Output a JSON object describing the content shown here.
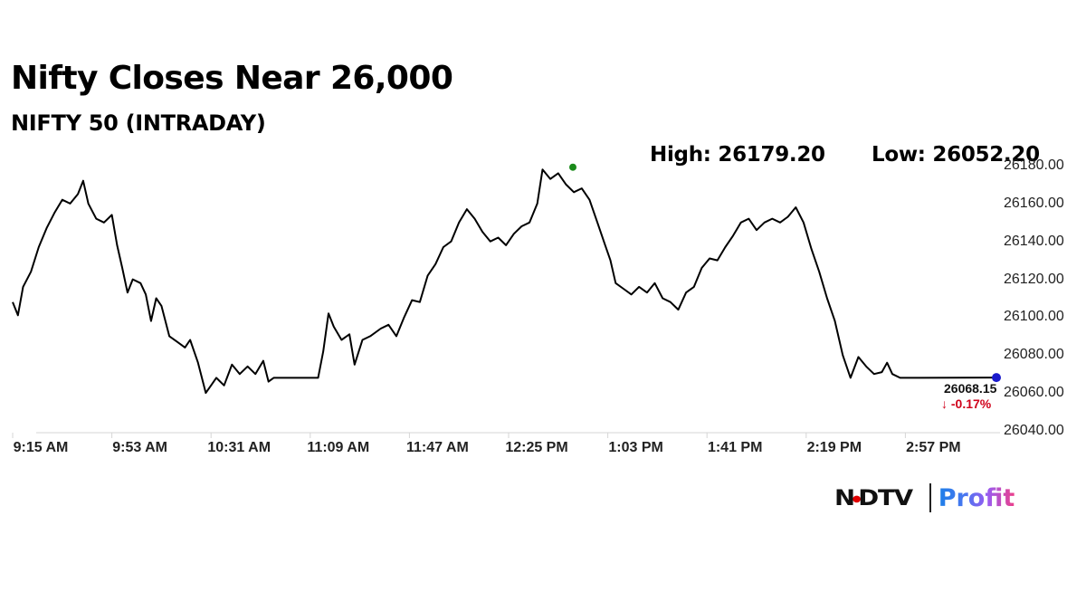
{
  "header": {
    "title": "Nifty Closes Near 26,000",
    "subtitle": "NIFTY 50 (INTRADAY)",
    "high_label": "High: 26179.20",
    "low_label": "Low: 26052.20"
  },
  "last": {
    "value": "26068.15",
    "change": "↓ -0.17%",
    "marker_color": "#1a1acc"
  },
  "colors": {
    "line": "#000000",
    "high_marker": "#1a8a1a",
    "last_marker": "#1a1acc",
    "change_negative": "#d0021b",
    "axis": "#cccccc"
  },
  "brand": {
    "ndtv_prefix": "N",
    "ndtv_dot": "•",
    "ndtv_suffix": "DTV",
    "profit": "Profit"
  },
  "chart_data": {
    "type": "line",
    "title": "Nifty Closes Near 26,000",
    "subtitle": "NIFTY 50 (INTRADAY)",
    "xlabel": "",
    "ylabel": "",
    "ylim": [
      26040,
      26180
    ],
    "grid": false,
    "y_ticks": [
      "26180.00",
      "26160.00",
      "26140.00",
      "26120.00",
      "26100.00",
      "26080.00",
      "26060.00",
      "26040.00"
    ],
    "x_ticks": [
      "9:15 AM",
      "9:53 AM",
      "10:31 AM",
      "11:09 AM",
      "11:47 AM",
      "12:25 PM",
      "1:03 PM",
      "1:41 PM",
      "2:19 PM",
      "2:57 PM"
    ],
    "annotations": {
      "high": 26179.2,
      "low": 26052.2,
      "last": 26068.15,
      "change_pct": -0.17
    },
    "series": [
      {
        "name": "NIFTY 50",
        "points_time_value": [
          [
            "9:15",
            26108
          ],
          [
            "9:17",
            26101
          ],
          [
            "9:19",
            26116
          ],
          [
            "9:22",
            26124
          ],
          [
            "9:25",
            26137
          ],
          [
            "9:28",
            26147
          ],
          [
            "9:31",
            26155
          ],
          [
            "9:34",
            26162
          ],
          [
            "9:37",
            26160
          ],
          [
            "9:40",
            26165
          ],
          [
            "9:42",
            26172
          ],
          [
            "9:44",
            26160
          ],
          [
            "9:47",
            26152
          ],
          [
            "9:50",
            26150
          ],
          [
            "9:53",
            26154
          ],
          [
            "9:55",
            26138
          ],
          [
            "9:57",
            26126
          ],
          [
            "9:59",
            26113
          ],
          [
            "10:01",
            26120
          ],
          [
            "10:04",
            26118
          ],
          [
            "10:06",
            26112
          ],
          [
            "10:08",
            26098
          ],
          [
            "10:10",
            26110
          ],
          [
            "10:12",
            26106
          ],
          [
            "10:15",
            26090
          ],
          [
            "10:18",
            26087
          ],
          [
            "10:21",
            26084
          ],
          [
            "10:23",
            26088
          ],
          [
            "10:26",
            26076
          ],
          [
            "10:29",
            26060
          ],
          [
            "10:31",
            26064
          ],
          [
            "10:33",
            26068
          ],
          [
            "10:36",
            26064
          ],
          [
            "10:39",
            26075
          ],
          [
            "10:42",
            26070
          ],
          [
            "10:45",
            26074
          ],
          [
            "10:48",
            26070
          ],
          [
            "10:51",
            26077
          ],
          [
            "10:53",
            26066
          ],
          [
            "10:55",
            26068
          ],
          [
            "11:12",
            26068
          ],
          [
            "11:14",
            26082
          ],
          [
            "11:16",
            26102
          ],
          [
            "11:18",
            26095
          ],
          [
            "11:21",
            26088
          ],
          [
            "11:24",
            26091
          ],
          [
            "11:26",
            26075
          ],
          [
            "11:29",
            26088
          ],
          [
            "11:32",
            26090
          ],
          [
            "11:36",
            26094
          ],
          [
            "11:39",
            26096
          ],
          [
            "11:42",
            26090
          ],
          [
            "11:45",
            26100
          ],
          [
            "11:48",
            26109
          ],
          [
            "11:51",
            26108
          ],
          [
            "11:54",
            26122
          ],
          [
            "11:57",
            26128
          ],
          [
            "12:00",
            26137
          ],
          [
            "12:03",
            26140
          ],
          [
            "12:06",
            26150
          ],
          [
            "12:09",
            26157
          ],
          [
            "12:12",
            26152
          ],
          [
            "12:15",
            26145
          ],
          [
            "12:18",
            26140
          ],
          [
            "12:21",
            26142
          ],
          [
            "12:24",
            26138
          ],
          [
            "12:27",
            26144
          ],
          [
            "12:30",
            26148
          ],
          [
            "12:33",
            26150
          ],
          [
            "12:36",
            26160
          ],
          [
            "12:38",
            26178
          ],
          [
            "12:41",
            26173
          ],
          [
            "12:44",
            26176
          ],
          [
            "12:47",
            26170
          ],
          [
            "12:50",
            26166
          ],
          [
            "12:53",
            26168
          ],
          [
            "12:56",
            26162
          ],
          [
            "12:59",
            26150
          ],
          [
            "1:02",
            26138
          ],
          [
            "1:04",
            26130
          ],
          [
            "1:06",
            26118
          ],
          [
            "1:09",
            26115
          ],
          [
            "1:12",
            26112
          ],
          [
            "1:15",
            26116
          ],
          [
            "1:18",
            26113
          ],
          [
            "1:21",
            26118
          ],
          [
            "1:24",
            26110
          ],
          [
            "1:27",
            26108
          ],
          [
            "1:30",
            26104
          ],
          [
            "1:33",
            26113
          ],
          [
            "1:36",
            26116
          ],
          [
            "1:39",
            26126
          ],
          [
            "1:42",
            26131
          ],
          [
            "1:45",
            26130
          ],
          [
            "1:48",
            26137
          ],
          [
            "1:51",
            26143
          ],
          [
            "1:54",
            26150
          ],
          [
            "1:57",
            26152
          ],
          [
            "2:00",
            26146
          ],
          [
            "2:03",
            26150
          ],
          [
            "2:06",
            26152
          ],
          [
            "2:09",
            26150
          ],
          [
            "2:12",
            26153
          ],
          [
            "2:15",
            26158
          ],
          [
            "2:18",
            26150
          ],
          [
            "2:21",
            26136
          ],
          [
            "2:24",
            26124
          ],
          [
            "2:27",
            26110
          ],
          [
            "2:30",
            26098
          ],
          [
            "2:33",
            26080
          ],
          [
            "2:36",
            26068
          ],
          [
            "2:39",
            26079
          ],
          [
            "2:42",
            26074
          ],
          [
            "2:45",
            26070
          ],
          [
            "2:48",
            26071
          ],
          [
            "2:50",
            26076
          ],
          [
            "2:52",
            26070
          ],
          [
            "2:55",
            26068
          ],
          [
            "3:30",
            26068.15
          ]
        ]
      }
    ]
  }
}
